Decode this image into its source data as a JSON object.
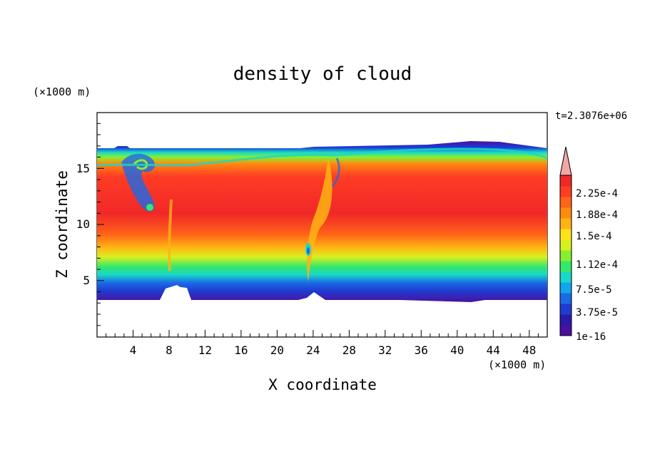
{
  "chart_data": {
    "type": "heatmap",
    "title": "density of cloud",
    "time_label": "t=2.3076e+06",
    "xlabel": "X coordinate",
    "ylabel": "Z coordinate",
    "x_unit": "(×1000 m)",
    "y_unit": "(×1000 m)",
    "xlim": [
      0,
      50
    ],
    "ylim": [
      0,
      20
    ],
    "x_ticks": [
      4,
      8,
      12,
      16,
      20,
      24,
      28,
      32,
      36,
      40,
      44,
      48
    ],
    "y_ticks": [
      5,
      10,
      15
    ],
    "colorbar": {
      "labels": [
        "2.25e-4",
        "1.88e-4",
        "1.5e-4",
        "1.12e-4",
        "7.5e-5",
        "3.75e-5",
        "1e-16"
      ],
      "colors": [
        "#4b0fa0",
        "#2a1aa8",
        "#1f3cd0",
        "#1a6ae8",
        "#12a6ec",
        "#18d8c8",
        "#35e86a",
        "#86f030",
        "#d8f020",
        "#ffe21a",
        "#ffb414",
        "#ff8a10",
        "#ff6418",
        "#ff3c24",
        "#f02828"
      ],
      "extend_color": "#f4a6a6"
    },
    "features": {
      "cloud_base_km": 3.5,
      "cloud_top_km": 16.7,
      "core_density": "2.25e-4"
    }
  }
}
